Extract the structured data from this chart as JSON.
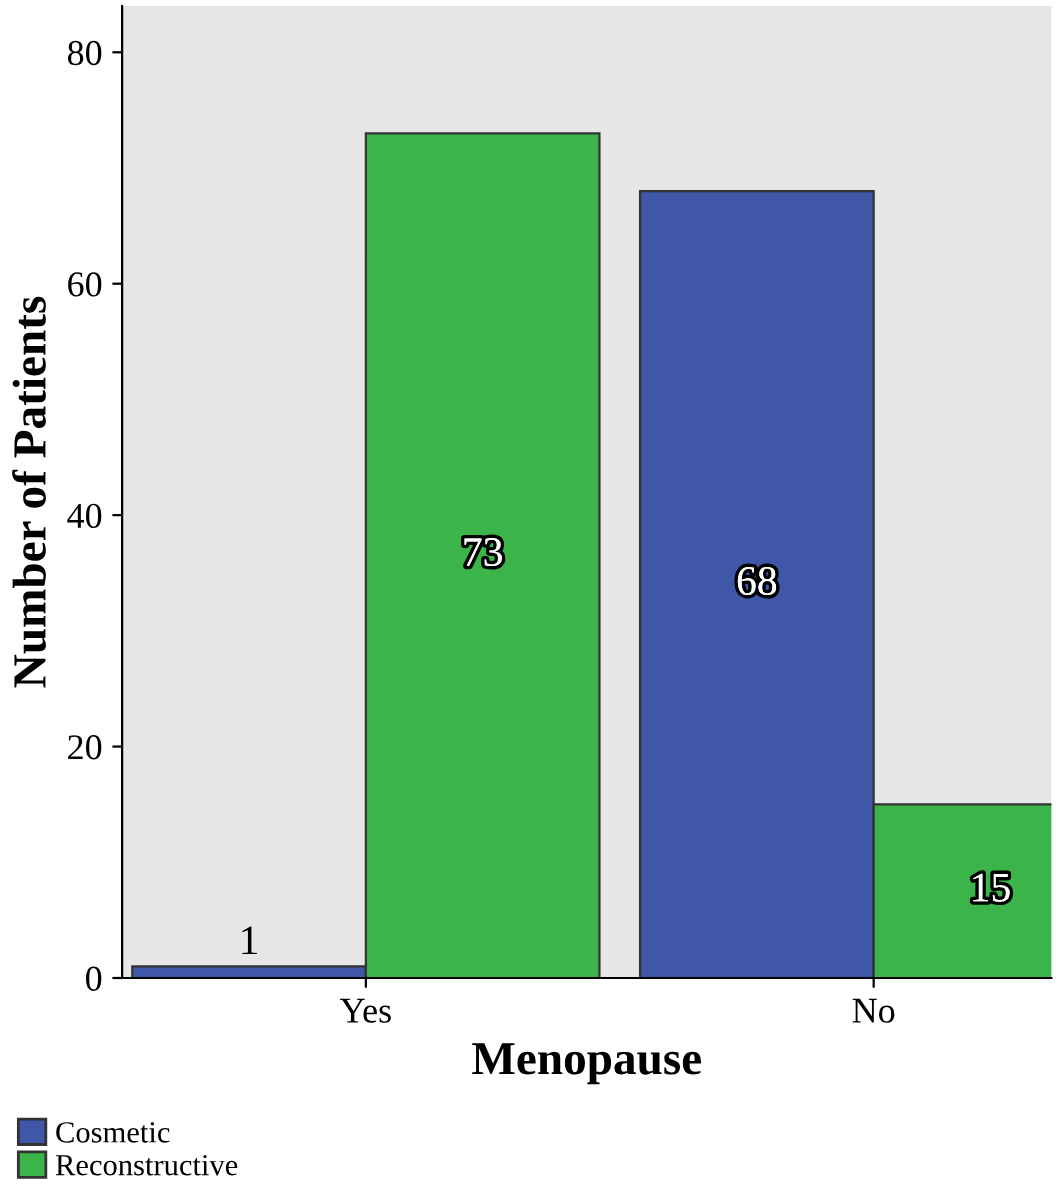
{
  "chart_data": {
    "type": "bar",
    "xlabel": "Menopause",
    "ylabel": "Number of Patients",
    "categories": [
      "Yes",
      "No"
    ],
    "series": [
      {
        "name": "Cosmetic",
        "color": "#3f57a6",
        "values": [
          1,
          68
        ]
      },
      {
        "name": "Reconstructive",
        "color": "#3bb54a",
        "values": [
          73,
          15
        ]
      }
    ],
    "ylim": [
      0,
      84
    ],
    "yticks": [
      0,
      20,
      40,
      60,
      80
    ],
    "grid": false,
    "legend": "bottom left",
    "data_labels": true
  }
}
